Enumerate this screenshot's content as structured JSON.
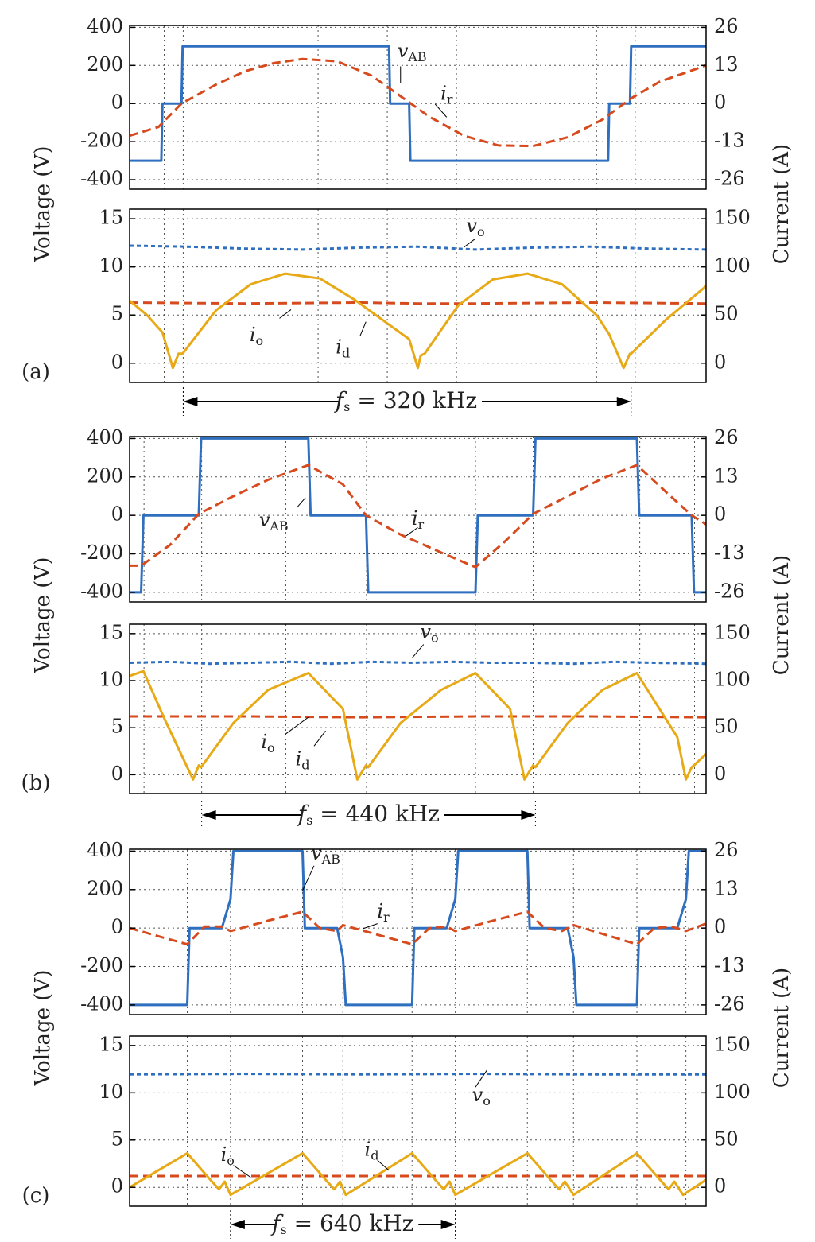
{
  "colors": {
    "v_AB": "#2f6fbf",
    "i_r": "#d64a1e",
    "v_o": "#2f6fbf",
    "i_o": "#d64a1e",
    "i_d": "#e8a917"
  },
  "chart_data": [
    {
      "panel": "(a)",
      "type": "line",
      "fs_label": "320 kHz",
      "axes": [
        {
          "role": "upper",
          "ylabel": "Voltage (V)",
          "ylabel2": "Current (A)",
          "ylim": [
            -450,
            410
          ],
          "yticks": [
            "400",
            "200",
            "0",
            "-200",
            "-400"
          ],
          "ylim2": [
            -29.25,
            26.65
          ],
          "yticks2": [
            "26",
            "13",
            "0",
            "-13",
            "-26"
          ],
          "xlim": [
            0,
            1
          ],
          "grid": true,
          "series": [
            {
              "name": "v_AB",
              "axis": "left",
              "style": "solid",
              "color": "#2f6fbf",
              "x": [
                0,
                0.055,
                0.057,
                0.09,
                0.092,
                0.45,
                0.452,
                0.485,
                0.487,
                0.83,
                0.832,
                0.868,
                0.87,
                1.0
              ],
              "y": [
                -300,
                -300,
                0,
                0,
                300,
                300,
                0,
                0,
                -300,
                -300,
                0,
                0,
                300,
                300
              ]
            },
            {
              "name": "i_r",
              "axis": "right",
              "style": "dashed",
              "color": "#d64a1e",
              "x": [
                0,
                0.05,
                0.09,
                0.15,
                0.2,
                0.25,
                0.3,
                0.36,
                0.42,
                0.47,
                0.52,
                0.58,
                0.64,
                0.7,
                0.76,
                0.82,
                0.87,
                0.92,
                1.0
              ],
              "y": [
                -11,
                -8,
                0,
                6.5,
                11,
                13.8,
                15.2,
                14.4,
                9.5,
                2.5,
                -4.5,
                -11,
                -14.3,
                -14.5,
                -11.5,
                -5.5,
                1.8,
                7.5,
                13
              ]
            }
          ],
          "labels": [
            {
              "text": "v",
              "sub": "AB"
            },
            {
              "text": "i",
              "sub": "r"
            }
          ]
        },
        {
          "role": "lower",
          "ylabel": "Voltage (V)",
          "ylabel2": "Current (A)",
          "ylim": [
            -2,
            16
          ],
          "yticks": [
            "15",
            "10",
            "5",
            "0"
          ],
          "ylim2": [
            -20,
            160
          ],
          "yticks2": [
            "150",
            "100",
            "50",
            "0"
          ],
          "xlim": [
            0,
            1
          ],
          "grid": true,
          "series": [
            {
              "name": "v_o",
              "axis": "left",
              "style": "dotted",
              "color": "#2f6fbf",
              "x": [
                0,
                0.1,
                0.2,
                0.3,
                0.4,
                0.5,
                0.6,
                0.7,
                0.8,
                0.9,
                1.0
              ],
              "y": [
                12.2,
                12.1,
                11.9,
                11.8,
                12.0,
                12.1,
                11.8,
                12.0,
                12.1,
                11.9,
                11.8
              ]
            },
            {
              "name": "i_o",
              "axis": "right",
              "style": "dashed",
              "color": "#d64a1e",
              "x": [
                0,
                0.2,
                0.4,
                0.5,
                0.6,
                0.8,
                1.0
              ],
              "y": [
                63,
                62,
                63,
                62,
                62,
                63,
                62
              ]
            },
            {
              "name": "i_d",
              "axis": "right",
              "style": "solid",
              "color": "#e8a917",
              "x": [
                0,
                0.03,
                0.057,
                0.075,
                0.085,
                0.092,
                0.15,
                0.21,
                0.27,
                0.33,
                0.39,
                0.45,
                0.485,
                0.5,
                0.505,
                0.512,
                0.57,
                0.63,
                0.69,
                0.75,
                0.81,
                0.832,
                0.857,
                0.868,
                0.87,
                0.93,
                1.0
              ],
              "y": [
                65,
                50,
                32,
                -5,
                10,
                10,
                55,
                82,
                93,
                88,
                66,
                40,
                25,
                -5,
                8,
                10,
                60,
                87,
                93,
                82,
                50,
                30,
                -5,
                10,
                10,
                45,
                80
              ]
            }
          ],
          "labels": [
            {
              "text": "v",
              "sub": "o"
            },
            {
              "text": "i",
              "sub": "o"
            },
            {
              "text": "i",
              "sub": "d"
            }
          ]
        }
      ]
    },
    {
      "panel": "(b)",
      "type": "line",
      "fs_label": "440 kHz",
      "axes": [
        {
          "role": "upper",
          "ylabel": "Voltage (V)",
          "ylabel2": "Current (A)",
          "ylim": [
            -450,
            410
          ],
          "yticks": [
            "400",
            "200",
            "0",
            "-200",
            "-400"
          ],
          "ylim2": [
            -29.25,
            26.65
          ],
          "yticks2": [
            "26",
            "13",
            "0",
            "-13",
            "-26"
          ],
          "xlim": [
            0,
            1
          ],
          "grid": true,
          "series": [
            {
              "name": "v_AB",
              "axis": "left",
              "style": "solid",
              "color": "#2f6fbf",
              "x": [
                0,
                0.02,
                0.024,
                0.12,
                0.124,
                0.31,
                0.314,
                0.41,
                0.414,
                0.6,
                0.604,
                0.7,
                0.704,
                0.88,
                0.884,
                0.975,
                0.979,
                1.0
              ],
              "y": [
                -400,
                -400,
                0,
                0,
                400,
                400,
                0,
                0,
                -400,
                -400,
                0,
                0,
                400,
                400,
                0,
                0,
                -400,
                -400
              ]
            },
            {
              "name": "i_r",
              "axis": "right",
              "style": "dashed",
              "color": "#d64a1e",
              "x": [
                0,
                0.02,
                0.07,
                0.12,
                0.18,
                0.24,
                0.31,
                0.37,
                0.41,
                0.47,
                0.54,
                0.6,
                0.65,
                0.7,
                0.76,
                0.82,
                0.88,
                0.93,
                0.975,
                1.0
              ],
              "y": [
                -17,
                -17,
                -10,
                0.5,
                6.5,
                12,
                17,
                10.5,
                0,
                -6.5,
                -12.5,
                -17.5,
                -9,
                0.5,
                6.5,
                12.5,
                17,
                8,
                0,
                -3
              ]
            }
          ],
          "labels": [
            {
              "text": "v",
              "sub": "AB"
            },
            {
              "text": "i",
              "sub": "r"
            }
          ]
        },
        {
          "role": "lower",
          "ylabel": "Voltage (V)",
          "ylabel2": "Current (A)",
          "ylim": [
            -2,
            16
          ],
          "yticks": [
            "15",
            "10",
            "5",
            "0"
          ],
          "ylim2": [
            -20,
            160
          ],
          "yticks2": [
            "150",
            "100",
            "50",
            "0"
          ],
          "xlim": [
            0,
            1
          ],
          "grid": true,
          "series": [
            {
              "name": "v_o",
              "axis": "left",
              "style": "dotted",
              "color": "#2f6fbf",
              "x": [
                0,
                0.07,
                0.14,
                0.21,
                0.28,
                0.35,
                0.42,
                0.49,
                0.56,
                0.63,
                0.7,
                0.77,
                0.84,
                0.91,
                1.0
              ],
              "y": [
                11.9,
                12.0,
                11.8,
                11.9,
                12.0,
                11.8,
                12.0,
                11.9,
                12.0,
                11.9,
                11.9,
                11.8,
                12.0,
                11.9,
                11.8
              ]
            },
            {
              "name": "i_o",
              "axis": "right",
              "style": "dashed",
              "color": "#d64a1e",
              "x": [
                0,
                0.2,
                0.4,
                0.6,
                0.8,
                1.0
              ],
              "y": [
                62,
                62,
                61,
                62,
                62,
                61
              ]
            },
            {
              "name": "i_d",
              "axis": "right",
              "style": "solid",
              "color": "#e8a917",
              "x": [
                0,
                0.024,
                0.06,
                0.11,
                0.12,
                0.124,
                0.18,
                0.24,
                0.31,
                0.37,
                0.395,
                0.41,
                0.414,
                0.47,
                0.54,
                0.6,
                0.66,
                0.685,
                0.7,
                0.704,
                0.76,
                0.82,
                0.88,
                0.95,
                0.965,
                0.975,
                0.979,
                1.0
              ],
              "y": [
                105,
                110,
                60,
                -5,
                10,
                8,
                55,
                90,
                108,
                70,
                -5,
                10,
                8,
                55,
                90,
                108,
                70,
                -5,
                10,
                8,
                55,
                90,
                108,
                40,
                -5,
                8,
                10,
                22
              ]
            }
          ],
          "labels": [
            {
              "text": "v",
              "sub": "o"
            },
            {
              "text": "i",
              "sub": "o"
            },
            {
              "text": "i",
              "sub": "d"
            }
          ]
        }
      ]
    },
    {
      "panel": "(c)",
      "type": "line",
      "fs_label": "640 kHz",
      "axes": [
        {
          "role": "upper",
          "ylabel": "Voltage (V)",
          "ylabel2": "Current (A)",
          "ylim": [
            -450,
            410
          ],
          "yticks": [
            "400",
            "200",
            "0",
            "-200",
            "-400"
          ],
          "ylim2": [
            -29.25,
            26.65
          ],
          "yticks2": [
            "26",
            "13",
            "0",
            "-13",
            "-26"
          ],
          "xlim": [
            0,
            1
          ],
          "grid": true,
          "series": [
            {
              "name": "v_AB",
              "axis": "left",
              "style": "solid",
              "color": "#2f6fbf",
              "x": [
                0,
                0.1,
                0.104,
                0.16,
                0.175,
                0.18,
                0.3,
                0.304,
                0.36,
                0.37,
                0.375,
                0.49,
                0.494,
                0.55,
                0.565,
                0.57,
                0.69,
                0.694,
                0.76,
                0.77,
                0.775,
                0.88,
                0.884,
                0.95,
                0.965,
                0.97,
                1.0
              ],
              "y": [
                -400,
                -400,
                0,
                0,
                150,
                400,
                400,
                0,
                0,
                -150,
                -400,
                -400,
                0,
                0,
                150,
                400,
                400,
                0,
                0,
                -150,
                -400,
                -400,
                0,
                0,
                150,
                400,
                400
              ]
            },
            {
              "name": "i_r",
              "axis": "right",
              "style": "dashed",
              "color": "#d64a1e",
              "x": [
                0,
                0.1,
                0.13,
                0.16,
                0.175,
                0.25,
                0.3,
                0.33,
                0.36,
                0.37,
                0.49,
                0.52,
                0.55,
                0.565,
                0.64,
                0.69,
                0.72,
                0.75,
                0.77,
                0.88,
                0.91,
                0.94,
                0.965,
                1.0
              ],
              "y": [
                0,
                -5.5,
                0.5,
                0.5,
                -1,
                3,
                5.5,
                0,
                -1,
                1,
                -5.5,
                0,
                0.5,
                -1,
                3,
                5.5,
                0,
                -1,
                1,
                -5.5,
                0,
                0.5,
                -1,
                1.5
              ]
            }
          ],
          "labels": [
            {
              "text": "v",
              "sub": "AB"
            },
            {
              "text": "i",
              "sub": "r"
            }
          ]
        },
        {
          "role": "lower",
          "ylabel": "Voltage (V)",
          "ylabel2": "Current (A)",
          "ylim": [
            -2,
            16
          ],
          "yticks": [
            "15",
            "10",
            "5",
            "0"
          ],
          "ylim2": [
            -20,
            160
          ],
          "yticks2": [
            "150",
            "100",
            "50",
            "0"
          ],
          "xlim": [
            0,
            1
          ],
          "grid": true,
          "series": [
            {
              "name": "v_o",
              "axis": "left",
              "style": "dotted",
              "color": "#2f6fbf",
              "x": [
                0,
                0.2,
                0.4,
                0.6,
                0.8,
                1.0
              ],
              "y": [
                11.95,
                12.0,
                11.95,
                12.0,
                11.95,
                11.95
              ]
            },
            {
              "name": "i_o",
              "axis": "right",
              "style": "dashed",
              "color": "#d64a1e",
              "x": [
                0,
                1.0
              ],
              "y": [
                12,
                12
              ]
            },
            {
              "name": "i_d",
              "axis": "right",
              "style": "solid",
              "color": "#e8a917",
              "x": [
                0,
                0.1,
                0.14,
                0.155,
                0.165,
                0.175,
                0.3,
                0.34,
                0.355,
                0.365,
                0.375,
                0.49,
                0.53,
                0.545,
                0.555,
                0.565,
                0.69,
                0.73,
                0.745,
                0.755,
                0.77,
                0.88,
                0.92,
                0.935,
                0.945,
                0.96,
                1.0
              ],
              "y": [
                0,
                36,
                8,
                -2,
                6,
                -8,
                36,
                8,
                -2,
                6,
                -8,
                36,
                8,
                -2,
                6,
                -8,
                36,
                8,
                -2,
                6,
                -8,
                36,
                8,
                -2,
                6,
                -8,
                8
              ]
            }
          ],
          "labels": [
            {
              "text": "v",
              "sub": "o"
            },
            {
              "text": "i",
              "sub": "o"
            },
            {
              "text": "i",
              "sub": "d"
            }
          ]
        }
      ]
    }
  ]
}
